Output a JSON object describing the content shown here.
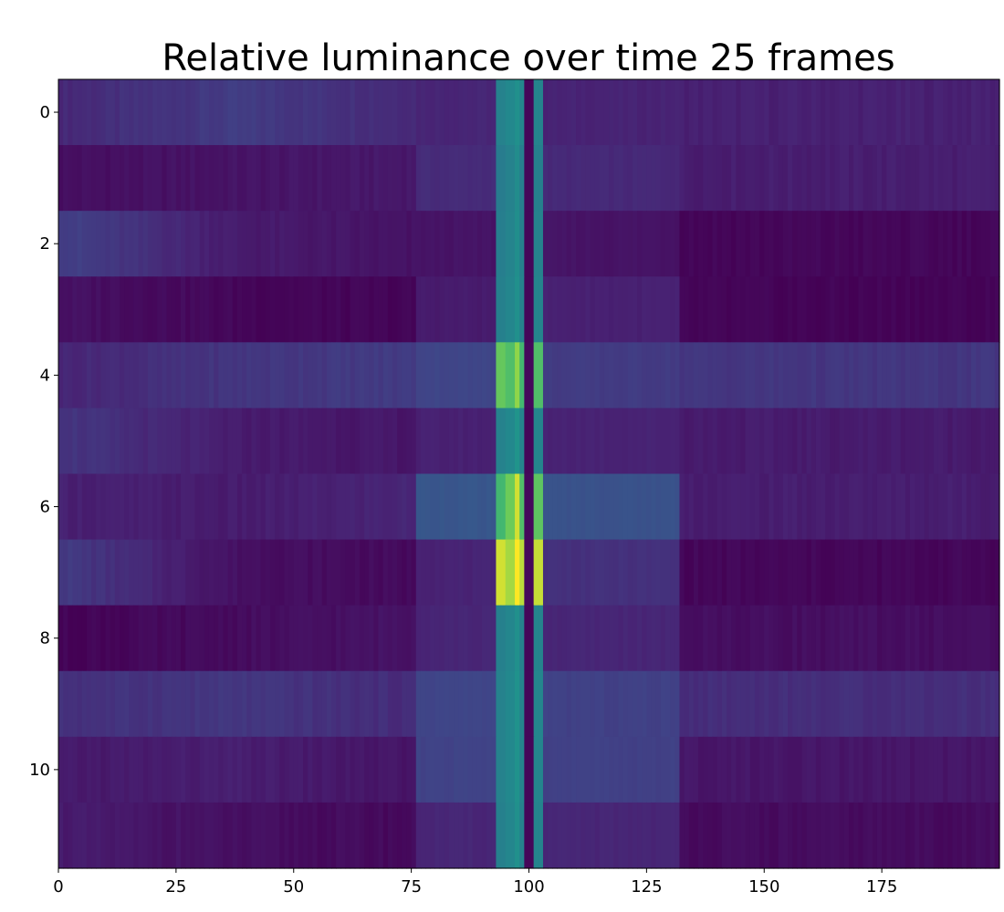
{
  "chart_data": {
    "type": "heatmap",
    "title": "Relative luminance over time 25 frames",
    "xlabel": "",
    "ylabel": "",
    "colormap": "viridis",
    "xlim": [
      0,
      200
    ],
    "ylim": [
      11.5,
      -0.5
    ],
    "x_ticks": [
      0,
      25,
      50,
      75,
      100,
      125,
      150,
      175
    ],
    "y_ticks": [
      0,
      2,
      4,
      6,
      8,
      10
    ],
    "n_columns": 200,
    "n_rows": 12,
    "grid": false,
    "rows": [
      {
        "row": 0,
        "left": [
          0.15,
          0.22,
          0.16
        ],
        "mid": 0.14,
        "bands": [
          0.55,
          0.58,
          0.62,
          0.57,
          0.02,
          0.56
        ],
        "right1": 0.13,
        "right2": 0.12
      },
      {
        "row": 1,
        "left": [
          0.05,
          0.07,
          0.09
        ],
        "mid": 0.16,
        "bands": [
          0.52,
          0.55,
          0.6,
          0.53,
          0.02,
          0.54
        ],
        "right1": 0.15,
        "right2": 0.11
      },
      {
        "row": 2,
        "left": [
          0.24,
          0.1,
          0.06
        ],
        "mid": 0.07,
        "bands": [
          0.53,
          0.56,
          0.61,
          0.54,
          0.02,
          0.55
        ],
        "right1": 0.07,
        "right2": 0.02
      },
      {
        "row": 3,
        "left": [
          0.06,
          0.02,
          0.01
        ],
        "mid": 0.1,
        "bands": [
          0.54,
          0.57,
          0.62,
          0.55,
          0.02,
          0.56
        ],
        "right1": 0.12,
        "right2": 0.01
      },
      {
        "row": 4,
        "left": [
          0.14,
          0.2,
          0.22
        ],
        "mid": 0.26,
        "bands": [
          0.85,
          0.82,
          0.9,
          0.8,
          0.03,
          0.82
        ],
        "right1": 0.22,
        "right2": 0.2
      },
      {
        "row": 5,
        "left": [
          0.2,
          0.1,
          0.08
        ],
        "mid": 0.12,
        "bands": [
          0.55,
          0.58,
          0.64,
          0.56,
          0.02,
          0.57
        ],
        "right1": 0.13,
        "right2": 0.1
      },
      {
        "row": 6,
        "left": [
          0.12,
          0.1,
          0.14
        ],
        "mid": 0.34,
        "bands": [
          0.8,
          0.86,
          0.96,
          0.82,
          0.03,
          0.84
        ],
        "right1": 0.32,
        "right2": 0.11
      },
      {
        "row": 7,
        "left": [
          0.22,
          0.06,
          0.03
        ],
        "mid": 0.13,
        "bands": [
          0.96,
          0.92,
          1.0,
          0.94,
          0.03,
          0.95
        ],
        "right1": 0.18,
        "right2": 0.02
      },
      {
        "row": 8,
        "left": [
          0.01,
          0.04,
          0.07
        ],
        "mid": 0.14,
        "bands": [
          0.54,
          0.57,
          0.62,
          0.55,
          0.02,
          0.56
        ],
        "right1": 0.14,
        "right2": 0.05
      },
      {
        "row": 9,
        "left": [
          0.18,
          0.2,
          0.16
        ],
        "mid": 0.26,
        "bands": [
          0.55,
          0.58,
          0.63,
          0.56,
          0.02,
          0.57
        ],
        "right1": 0.24,
        "right2": 0.17
      },
      {
        "row": 10,
        "left": [
          0.09,
          0.11,
          0.07
        ],
        "mid": 0.25,
        "bands": [
          0.55,
          0.58,
          0.63,
          0.56,
          0.02,
          0.57
        ],
        "right1": 0.24,
        "right2": 0.08
      },
      {
        "row": 11,
        "left": [
          0.1,
          0.05,
          0.03
        ],
        "mid": 0.14,
        "bands": [
          0.54,
          0.57,
          0.62,
          0.55,
          0.02,
          0.56
        ],
        "right1": 0.14,
        "right2": 0.04
      }
    ]
  }
}
